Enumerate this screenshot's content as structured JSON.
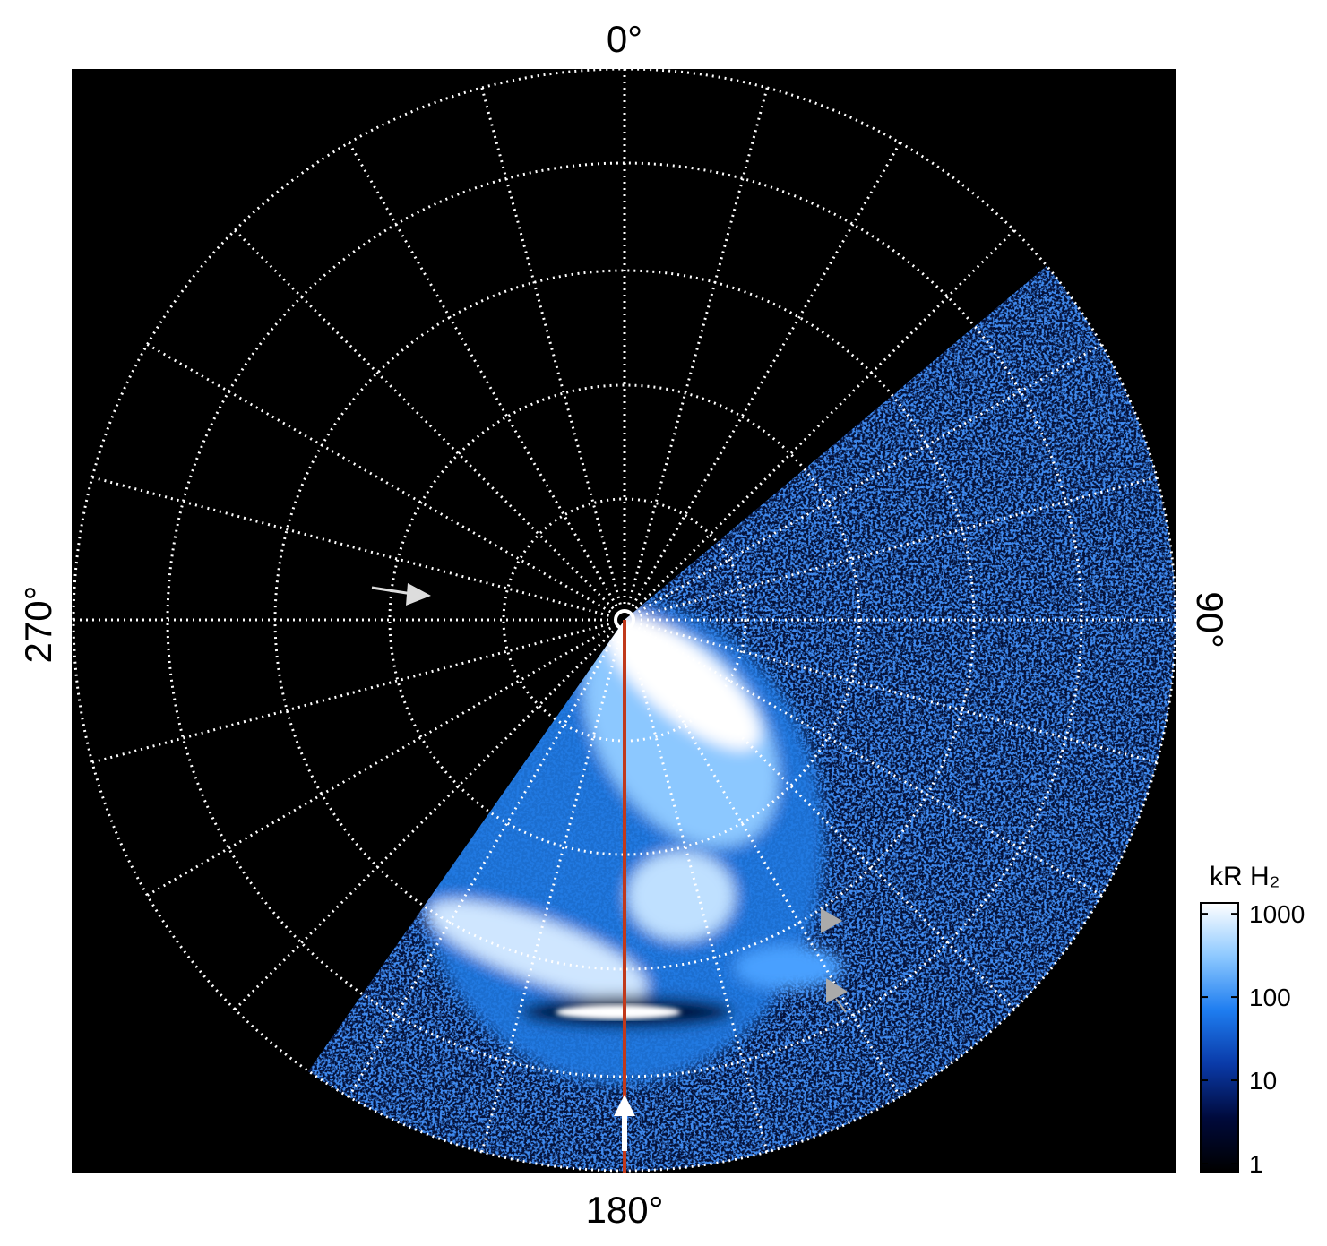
{
  "chart_data": {
    "type": "polar-image",
    "angle_labels": {
      "top": "0°",
      "right": "90°",
      "bottom": "180°",
      "left": "270°"
    },
    "colorbar": {
      "label": "kR H₂",
      "scale": "log",
      "clim": [
        0.8,
        1350
      ],
      "ticks": [
        1,
        10,
        100,
        1000
      ],
      "colormap": [
        "#000000",
        "#000a3c",
        "#0a3aa8",
        "#1e7df0",
        "#8cc8ff",
        "#ffffff"
      ]
    }
  }
}
